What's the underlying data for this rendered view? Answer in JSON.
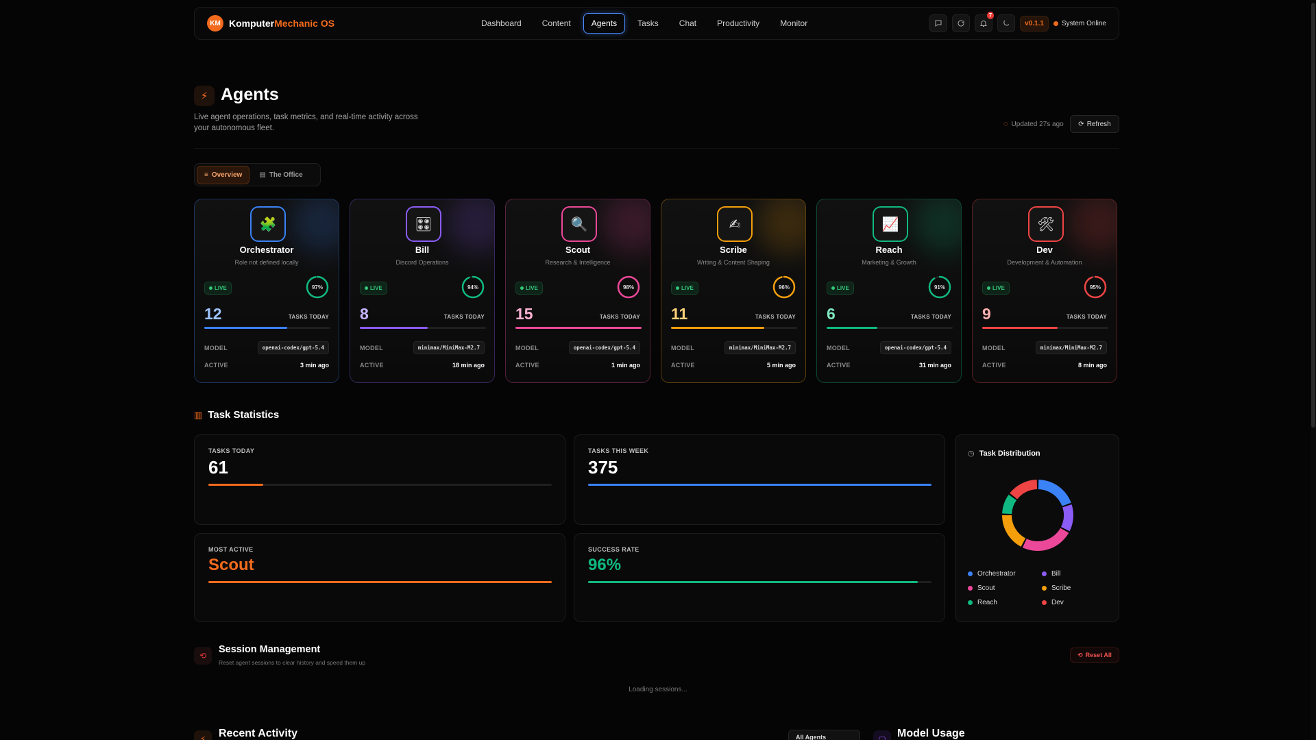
{
  "nav": {
    "logo_initials": "KM",
    "brand_primary": "Komputer",
    "brand_accent": "Mechanic OS",
    "links": [
      "Dashboard",
      "Content",
      "Agents",
      "Tasks",
      "Chat",
      "Productivity",
      "Monitor"
    ],
    "active_link": "Agents",
    "notification_count": "7",
    "version": "v0.1.1",
    "status": "System Online"
  },
  "header": {
    "title": "Agents",
    "subtitle": "Live agent operations, task metrics, and real-time activity across your autonomous fleet.",
    "updated": "Updated 27s ago",
    "refresh_label": "Refresh"
  },
  "tabs": {
    "overview": "Overview",
    "office": "The Office"
  },
  "agents": [
    {
      "name": "Orchestrator",
      "role": "Role not defined locally",
      "icon": "🧩",
      "status": "LIVE",
      "health": "97%",
      "health_value": 97,
      "tasks": "12",
      "tasks_label": "TASKS TODAY",
      "progress": 0.66,
      "model": "openai-codex/gpt-5.4",
      "active": "3 min ago",
      "color": "#3b82f6"
    },
    {
      "name": "Bill",
      "role": "Discord Operations",
      "icon": "🎛",
      "status": "LIVE",
      "health": "94%",
      "health_value": 94,
      "tasks": "8",
      "tasks_label": "TASKS TODAY",
      "progress": 0.54,
      "model": "minimax/MiniMax-M2.7",
      "active": "18 min ago",
      "color": "#8b5cf6"
    },
    {
      "name": "Scout",
      "role": "Research & Intelligence",
      "icon": "🔍",
      "status": "LIVE",
      "health": "98%",
      "health_value": 98,
      "tasks": "15",
      "tasks_label": "TASKS TODAY",
      "progress": 1.0,
      "model": "openai-codex/gpt-5.4",
      "active": "1 min ago",
      "color": "#ec4899"
    },
    {
      "name": "Scribe",
      "role": "Writing & Content Shaping",
      "icon": "✍",
      "status": "LIVE",
      "health": "96%",
      "health_value": 96,
      "tasks": "11",
      "tasks_label": "TASKS TODAY",
      "progress": 0.74,
      "model": "minimax/MiniMax-M2.7",
      "active": "5 min ago",
      "color": "#f59e0b"
    },
    {
      "name": "Reach",
      "role": "Marketing & Growth",
      "icon": "📈",
      "status": "LIVE",
      "health": "91%",
      "health_value": 91,
      "tasks": "6",
      "tasks_label": "TASKS TODAY",
      "progress": 0.4,
      "model": "openai-codex/gpt-5.4",
      "active": "31 min ago",
      "color": "#10b981"
    },
    {
      "name": "Dev",
      "role": "Development & Automation",
      "icon": "🛠",
      "status": "LIVE",
      "health": "95%",
      "health_value": 95,
      "tasks": "9",
      "tasks_label": "TASKS TODAY",
      "progress": 0.6,
      "model": "minimax/MiniMax-M2.7",
      "active": "8 min ago",
      "color": "#ef4444"
    }
  ],
  "labels": {
    "model": "MODEL",
    "active": "ACTIVE"
  },
  "stats": {
    "section_title": "Task Statistics",
    "tasks_today": {
      "label": "TASKS TODAY",
      "value": "61",
      "progress": 0.16,
      "color": "#f26b1d"
    },
    "tasks_week": {
      "label": "TASKS THIS WEEK",
      "value": "375",
      "progress": 1.0,
      "color": "#3b82f6"
    },
    "most_active": {
      "label": "MOST ACTIVE",
      "value": "Scout",
      "progress": 1.0,
      "color": "#f26b1d"
    },
    "success_rate": {
      "label": "SUCCESS RATE",
      "value": "96%",
      "progress": 0.96,
      "color": "#10b981"
    }
  },
  "distribution": {
    "title": "Task Distribution",
    "legend": [
      "Orchestrator",
      "Bill",
      "Scout",
      "Scribe",
      "Reach",
      "Dev"
    ]
  },
  "chart_data": {
    "type": "pie",
    "title": "Task Distribution",
    "categories": [
      "Orchestrator",
      "Bill",
      "Scout",
      "Scribe",
      "Reach",
      "Dev"
    ],
    "values": [
      12,
      8,
      15,
      11,
      6,
      9
    ],
    "colors": [
      "#3b82f6",
      "#8b5cf6",
      "#ec4899",
      "#f59e0b",
      "#10b981",
      "#ef4444"
    ]
  },
  "sessions": {
    "title": "Session Management",
    "subtitle": "Reset agent sessions to clear history and speed them up",
    "reset_label": "Reset All",
    "loading": "Loading sessions..."
  },
  "recent": {
    "title": "Recent Activity",
    "filter": "All Agents"
  },
  "model_usage": {
    "title": "Model Usage"
  }
}
